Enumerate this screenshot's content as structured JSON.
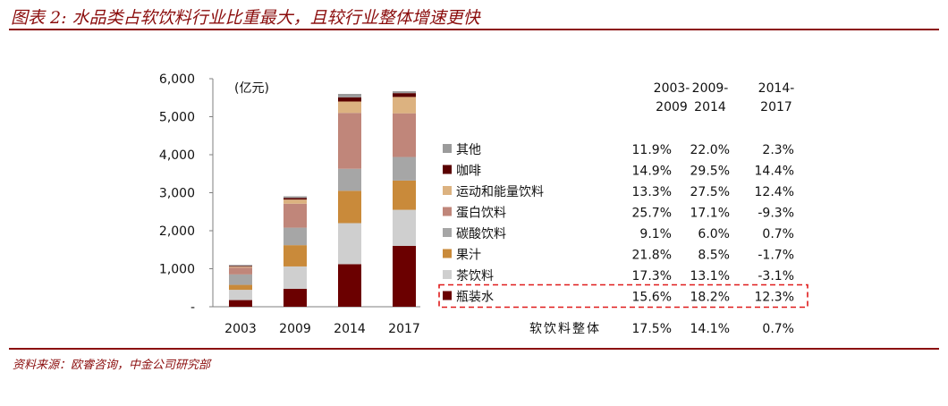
{
  "header": {
    "title": "图表 2: 水品类占软饮料行业比重最大，且较行业整体增速更快"
  },
  "footer": {
    "source": "资料来源：欧睿咨询，中金公司研究部"
  },
  "chart_data": {
    "type": "bar",
    "stacked": true,
    "unit": "(亿元)",
    "ylim": [
      0,
      6000
    ],
    "yticks": [
      "-",
      "1,000",
      "2,000",
      "3,000",
      "4,000",
      "5,000",
      "6,000"
    ],
    "categories": [
      "2003",
      "2009",
      "2014",
      "2017"
    ],
    "series": [
      {
        "name": "瓶装水",
        "color": "#6b0000",
        "values": [
          175,
          470,
          1120,
          1600
        ]
      },
      {
        "name": "茶饮料",
        "color": "#cfcfcf",
        "values": [
          270,
          590,
          1080,
          950
        ]
      },
      {
        "name": "果汁",
        "color": "#c98a3a",
        "values": [
          130,
          560,
          850,
          770
        ]
      },
      {
        "name": "碳酸饮料",
        "color": "#a6a6a6",
        "values": [
          275,
          460,
          580,
          620
        ]
      },
      {
        "name": "蛋白饮料",
        "color": "#c0867a",
        "values": [
          180,
          630,
          1470,
          1150
        ]
      },
      {
        "name": "运动和能量饮料",
        "color": "#dcb280",
        "values": [
          25,
          110,
          300,
          430
        ]
      },
      {
        "name": "咖啡",
        "color": "#5a0000",
        "values": [
          15,
          40,
          110,
          100
        ]
      },
      {
        "name": "其他",
        "color": "#9b9b9b",
        "values": [
          30,
          45,
          90,
          50
        ]
      }
    ],
    "growth_table": {
      "headers": [
        [
          "2003-",
          "2009"
        ],
        [
          "2009-",
          "2014"
        ],
        [
          "2014-",
          "2017"
        ]
      ],
      "rows": [
        {
          "name": "其他",
          "values": [
            "11.9%",
            "22.0%",
            "2.3%"
          ]
        },
        {
          "name": "咖啡",
          "values": [
            "14.9%",
            "29.5%",
            "14.4%"
          ]
        },
        {
          "name": "运动和能量饮料",
          "values": [
            "13.3%",
            "27.5%",
            "12.4%"
          ]
        },
        {
          "name": "蛋白饮料",
          "values": [
            "25.7%",
            "17.1%",
            "-9.3%"
          ]
        },
        {
          "name": "碳酸饮料",
          "values": [
            "9.1%",
            "6.0%",
            "0.7%"
          ]
        },
        {
          "name": "果汁",
          "values": [
            "21.8%",
            "8.5%",
            "-1.7%"
          ]
        },
        {
          "name": "茶饮料",
          "values": [
            "17.3%",
            "13.1%",
            "-3.1%"
          ]
        },
        {
          "name": "瓶装水",
          "values": [
            "15.6%",
            "18.2%",
            "12.3%"
          ]
        }
      ],
      "total": {
        "name": "软饮料整体",
        "values": [
          "17.5%",
          "14.1%",
          "0.7%"
        ]
      },
      "highlight_row": "瓶装水",
      "highlight_color": "#e01b1b"
    }
  }
}
